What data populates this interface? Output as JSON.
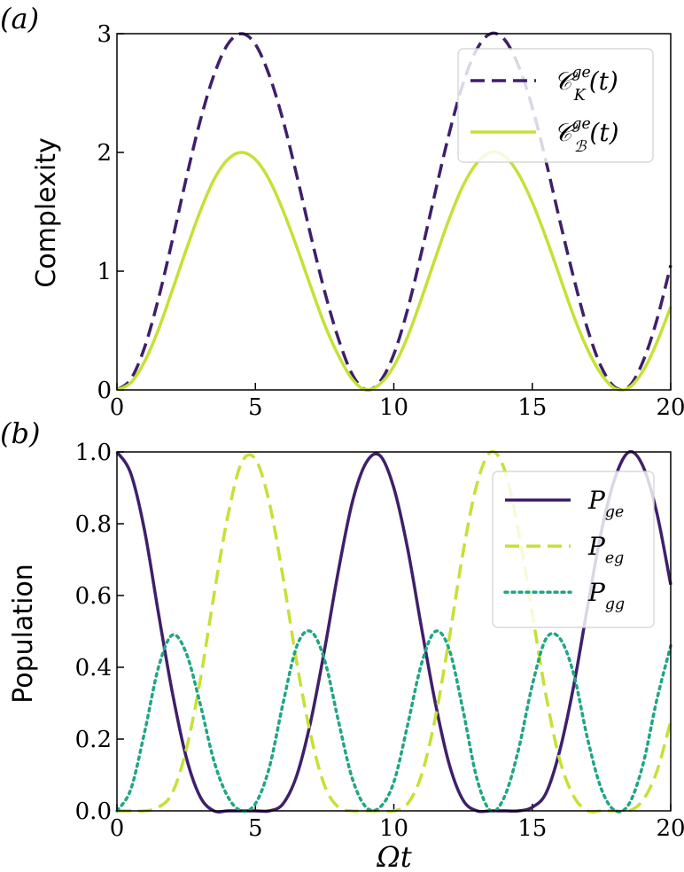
{
  "colors": {
    "dark_purple": "#3f1f6b",
    "yellow_green": "#c5e135",
    "teal": "#21a585",
    "axis": "#000000"
  },
  "chart_data": [
    {
      "type": "line",
      "panel_label": "(a)",
      "xlabel": "",
      "ylabel": "Complexity",
      "xlim": [
        0,
        20
      ],
      "ylim": [
        0,
        3
      ],
      "xticks": [
        "0",
        "5",
        "10",
        "15",
        "20"
      ],
      "yticks": [
        "0",
        "1",
        "2",
        "3"
      ],
      "legend_position": "top-right",
      "x": [
        0,
        0.5,
        1,
        1.5,
        2,
        2.5,
        3,
        3.5,
        4,
        4.5,
        5,
        5.5,
        6,
        6.5,
        7,
        7.5,
        8,
        8.5,
        9,
        9.5,
        10,
        10.5,
        11,
        11.5,
        12,
        12.5,
        13,
        13.5,
        14,
        14.5,
        15,
        15.5,
        16,
        16.5,
        17,
        17.5,
        18,
        18.5,
        19,
        19.5,
        20
      ],
      "series": [
        {
          "name": "C_K^{ge}(t)",
          "legend_main": "𝒞",
          "legend_sup": "ge",
          "legend_sub": "K",
          "legend_tail": "(t)",
          "style": "dashed",
          "color": "#3f1f6b",
          "values": [
            0.0,
            0.09,
            0.36,
            0.77,
            1.26,
            1.78,
            2.26,
            2.65,
            2.91,
            3.0,
            2.91,
            2.65,
            2.27,
            1.8,
            1.3,
            0.83,
            0.43,
            0.13,
            0.0,
            0.07,
            0.3,
            0.68,
            1.16,
            1.67,
            2.16,
            2.58,
            2.87,
            3.0,
            2.95,
            2.73,
            2.38,
            1.92,
            1.42,
            0.94,
            0.51,
            0.19,
            0.02,
            0.03,
            0.24,
            0.59,
            1.05
          ]
        },
        {
          "name": "C_B^{ge}(t)",
          "legend_main": "𝒞",
          "legend_sup": "ge",
          "legend_sub": "ℬ",
          "legend_tail": "(t)",
          "style": "solid",
          "color": "#c5e135",
          "values": [
            0.0,
            0.06,
            0.24,
            0.51,
            0.84,
            1.18,
            1.5,
            1.77,
            1.94,
            2.0,
            1.94,
            1.77,
            1.51,
            1.2,
            0.87,
            0.55,
            0.29,
            0.09,
            0.0,
            0.05,
            0.2,
            0.45,
            0.77,
            1.11,
            1.44,
            1.72,
            1.91,
            2.0,
            1.97,
            1.82,
            1.58,
            1.28,
            0.95,
            0.62,
            0.34,
            0.13,
            0.01,
            0.02,
            0.16,
            0.4,
            0.7
          ]
        }
      ]
    },
    {
      "type": "line",
      "panel_label": "(b)",
      "xlabel": "Ωt",
      "ylabel": "Population",
      "xlim": [
        0,
        20
      ],
      "ylim": [
        0,
        1
      ],
      "xticks": [
        "0",
        "5",
        "10",
        "15",
        "20"
      ],
      "yticks": [
        "0.0",
        "0.2",
        "0.4",
        "0.6",
        "0.8",
        "1.0"
      ],
      "legend_position": "top-right",
      "x": [
        0,
        0.5,
        1,
        1.5,
        2,
        2.5,
        3,
        3.5,
        4,
        4.5,
        5,
        5.5,
        6,
        6.5,
        7,
        7.5,
        8,
        8.5,
        9,
        9.5,
        10,
        10.5,
        11,
        11.5,
        12,
        12.5,
        13,
        13.5,
        14,
        14.5,
        15,
        15.5,
        16,
        16.5,
        17,
        17.5,
        18,
        18.5,
        19,
        19.5,
        20
      ],
      "series": [
        {
          "name": "P_{ge}",
          "legend_main": "P",
          "legend_sub": "ge",
          "style": "solid",
          "color": "#3f1f6b",
          "values": [
            1.0,
            0.94,
            0.78,
            0.55,
            0.33,
            0.15,
            0.04,
            0.0,
            0.0,
            0.0,
            0.0,
            0.0,
            0.02,
            0.1,
            0.25,
            0.45,
            0.67,
            0.86,
            0.97,
            0.99,
            0.9,
            0.73,
            0.51,
            0.3,
            0.13,
            0.03,
            0.0,
            0.0,
            0.0,
            0.0,
            0.01,
            0.05,
            0.17,
            0.35,
            0.57,
            0.78,
            0.93,
            1.0,
            0.96,
            0.83,
            0.63
          ]
        },
        {
          "name": "P_{eg}",
          "legend_main": "P",
          "legend_sub": "eg",
          "style": "dashed",
          "color": "#c5e135",
          "values": [
            0.0,
            0.0,
            0.0,
            0.01,
            0.05,
            0.17,
            0.36,
            0.6,
            0.82,
            0.97,
            0.98,
            0.86,
            0.65,
            0.41,
            0.21,
            0.07,
            0.01,
            0.0,
            0.0,
            0.0,
            0.0,
            0.02,
            0.1,
            0.26,
            0.48,
            0.72,
            0.91,
            1.0,
            0.95,
            0.78,
            0.55,
            0.32,
            0.14,
            0.04,
            0.0,
            0.0,
            0.0,
            0.0,
            0.03,
            0.11,
            0.25
          ]
        },
        {
          "name": "P_{gg}",
          "legend_main": "P",
          "legend_sub": "gg",
          "style": "dotted",
          "color": "#21a585",
          "values": [
            0.0,
            0.06,
            0.22,
            0.4,
            0.49,
            0.44,
            0.3,
            0.14,
            0.04,
            0.0,
            0.02,
            0.12,
            0.3,
            0.46,
            0.5,
            0.42,
            0.25,
            0.09,
            0.01,
            0.01,
            0.08,
            0.24,
            0.41,
            0.5,
            0.45,
            0.28,
            0.09,
            0.0,
            0.04,
            0.17,
            0.35,
            0.48,
            0.48,
            0.38,
            0.2,
            0.06,
            0.0,
            0.02,
            0.13,
            0.31,
            0.46
          ]
        }
      ]
    }
  ]
}
